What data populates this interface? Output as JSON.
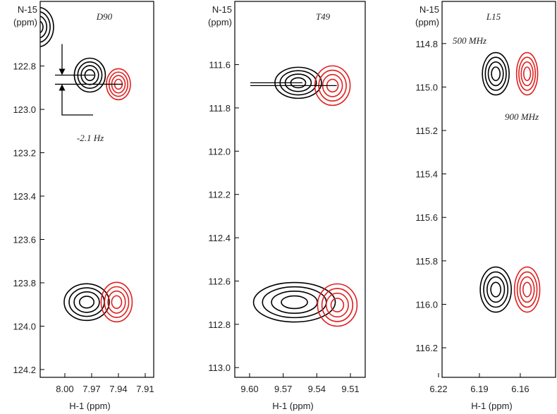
{
  "chart_data": [
    {
      "type": "contour",
      "title": "D90",
      "x_label": "H-1 (ppm)",
      "y_label": [
        "N-15",
        "(ppm)"
      ],
      "xlim": [
        8.0276,
        7.9005
      ],
      "ylim": [
        122.502,
        124.236
      ],
      "xticks": [
        {
          "value": 8,
          "label": "8.00"
        },
        7.97,
        7.94,
        7.91
      ],
      "yticks": [
        122.8,
        {
          "value": 123,
          "label": "123.0"
        },
        123.2,
        123.4,
        123.6,
        123.8,
        {
          "value": 124,
          "label": "124.0"
        },
        124.2
      ],
      "series": [
        {
          "color": "#000000",
          "x": [
            7.972,
            7.9755,
            8.03
          ],
          "values": [
            122.842,
            123.889,
            122.62
          ]
        },
        {
          "color": "#e02020",
          "x": [
            7.94,
            7.942
          ],
          "values": [
            122.884,
            123.889
          ]
        }
      ],
      "annotations": [
        {
          "text": "-2.1 Hz",
          "color": "#e02020"
        }
      ]
    },
    {
      "type": "contour",
      "title": "T49",
      "x_label": "H-1 (ppm)",
      "y_label": [
        "N-15",
        "(ppm)"
      ],
      "xlim": [
        9.6132,
        9.4968
      ],
      "ylim": [
        111.308,
        113.045
      ],
      "xticks": [
        {
          "value": 9.6,
          "label": "9.60"
        },
        9.57,
        9.54,
        9.51
      ],
      "yticks": [
        111.6,
        111.8,
        {
          "value": 112,
          "label": "112.0"
        },
        112.2,
        112.4,
        112.6,
        112.8,
        {
          "value": 113,
          "label": "113.0"
        }
      ],
      "series": [
        {
          "color": "#000000",
          "x": [
            9.5566,
            9.56
          ],
          "values": [
            111.684,
            112.698
          ]
        },
        {
          "color": "#e02020",
          "x": [
            9.526,
            9.5217
          ],
          "values": [
            111.697,
            112.711
          ]
        }
      ]
    },
    {
      "type": "contour",
      "title": "L15",
      "x_label": "H-1 (ppm)",
      "y_label": [
        "N-15",
        "(ppm)"
      ],
      "xlim": [
        6.2174,
        6.1341
      ],
      "ylim": [
        114.606,
        116.336
      ],
      "xticks": [
        6.22,
        6.19,
        6.16
      ],
      "yticks": [
        114.8,
        {
          "value": 115,
          "label": "115.0"
        },
        115.2,
        115.4,
        115.6,
        115.8,
        {
          "value": 116,
          "label": "116.0"
        },
        116.2
      ],
      "series": [
        {
          "name": "500 MHz",
          "color": "#000000",
          "x": [
            6.178,
            6.178
          ],
          "values": [
            114.939,
            115.932
          ]
        },
        {
          "name": "900 MHz",
          "color": "#e02020",
          "x": [
            6.155,
            6.155
          ],
          "values": [
            114.939,
            115.932
          ]
        }
      ]
    }
  ]
}
